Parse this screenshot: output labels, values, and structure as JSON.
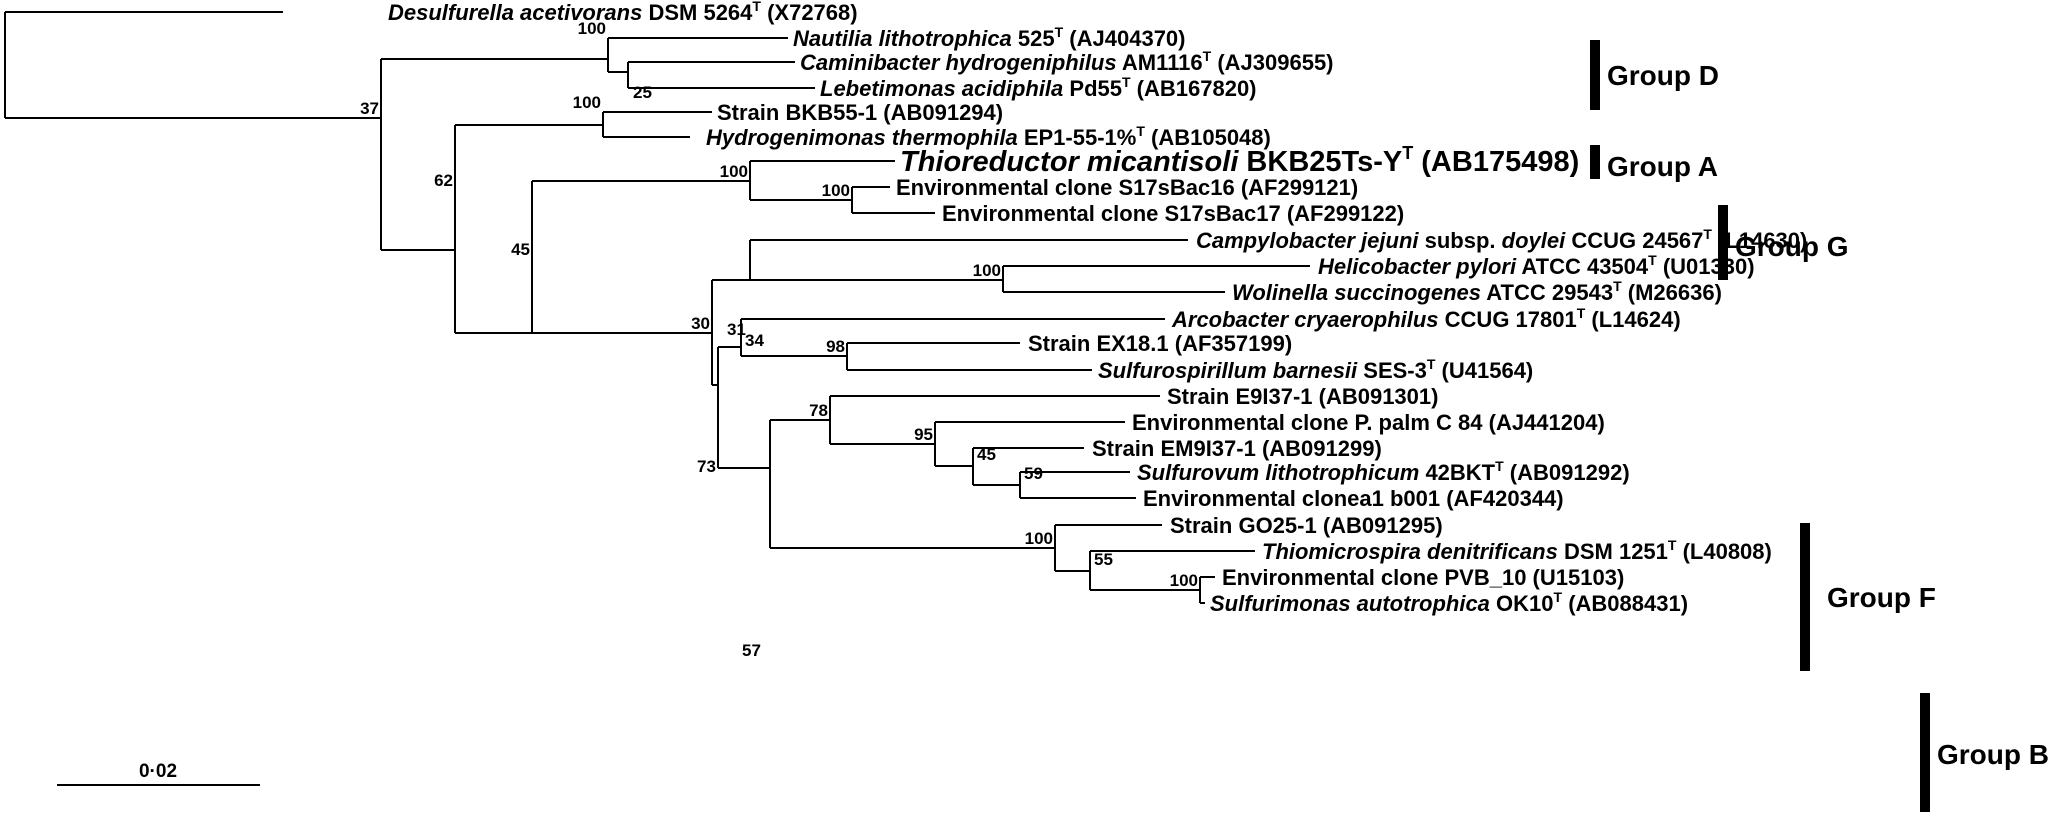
{
  "leaves": {
    "desulfurella": {
      "name": "Desulfurella acetivorans",
      "strain": " DSM 5264",
      "sup": "T",
      "acc": " (X72768)"
    },
    "nautilia": {
      "name": "Nautilia lithotrophica",
      "strain": " 525",
      "sup": "T",
      "acc": " (AJ404370)"
    },
    "caminibacter": {
      "name": "Caminibacter hydrogeniphilus",
      "strain": " AM1116",
      "sup": "T",
      "acc": " (AJ309655)"
    },
    "lebetimonas": {
      "name": "Lebetimonas acidiphila",
      "strain": " Pd55",
      "sup": "T",
      "acc": " (AB167820)"
    },
    "bkb55": {
      "name": "",
      "strain": "Strain BKB55-1",
      "sup": "",
      "acc": " (AB091294)"
    },
    "hydrogenimonas": {
      "name": "Hydrogenimonas thermophila",
      "strain": " EP1-55-1%",
      "sup": "T",
      "acc": " (AB105048)"
    },
    "thioreductor": {
      "name": "Thioreductor micantisoli",
      "strain": " BKB25Ts-Y",
      "sup": "T",
      "acc": " (AB175498)"
    },
    "s17sbac16": {
      "name": "",
      "strain": "Environmental clone S17sBac16",
      "sup": "",
      "acc": " (AF299121)"
    },
    "s17sbac17": {
      "name": "",
      "strain": "Environmental clone S17sBac17",
      "sup": "",
      "acc": " (AF299122)"
    },
    "campylobacter": {
      "name": "Campylobacter jejuni",
      "strain": " subsp. ",
      "name2": "doylei",
      "strain2": " CCUG 24567",
      "sup": "T",
      "acc": " (L14630)"
    },
    "helicobacter": {
      "name": "Helicobacter pylori",
      "strain": " ATCC 43504",
      "sup": "T",
      "acc": " (U01330)"
    },
    "wolinella": {
      "name": "Wolinella succinogenes",
      "strain": " ATCC 29543",
      "sup": "T",
      "acc": " (M26636)"
    },
    "arcobacter": {
      "name": "Arcobacter cryaerophilus",
      "strain": " CCUG 17801",
      "sup": "T",
      "acc": " (L14624)"
    },
    "ex18": {
      "name": "",
      "strain": "Strain EX18.1",
      "sup": "",
      "acc": " (AF357199)"
    },
    "sulfurospirillum": {
      "name": "Sulfurospirillum barnesii",
      "strain": " SES-3",
      "sup": "T",
      "acc": " (U41564)"
    },
    "e9i37": {
      "name": "",
      "strain": "Strain E9I37-1",
      "sup": "",
      "acc": " (AB091301)"
    },
    "ppalm": {
      "name": "",
      "strain": "Environmental clone P. palm C 84",
      "sup": "",
      "acc": " (AJ441204)"
    },
    "em9i37": {
      "name": "",
      "strain": "Strain EM9I37-1",
      "sup": "",
      "acc": " (AB091299)"
    },
    "sulfurovum": {
      "name": "Sulfurovum lithotrophicum",
      "strain": " 42BKT",
      "sup": "T",
      "acc": " (AB091292)"
    },
    "clonea1": {
      "name": "",
      "strain": "Environmental clonea1 b001",
      "sup": "",
      "acc": " (AF420344)"
    },
    "go25": {
      "name": "",
      "strain": "Strain GO25-1",
      "sup": "",
      "acc": " (AB091295)"
    },
    "thiomicrospira": {
      "name": "Thiomicrospira denitrificans",
      "strain": " DSM 1251",
      "sup": "T",
      "acc": " (L40808)"
    },
    "pvb10": {
      "name": "",
      "strain": "Environmental clone PVB_10",
      "sup": "",
      "acc": " (U15103)"
    },
    "sulfurimonas": {
      "name": "Sulfurimonas autotrophica",
      "strain": " OK10",
      "sup": "T",
      "acc": " (AB088431)"
    }
  },
  "bootstrap": {
    "b100_groupd": "100",
    "b25": "25",
    "b37": "37",
    "b100_groupa": "100",
    "b62": "62",
    "b100_groupg": "100",
    "b100_s17": "100",
    "b45": "45",
    "b31": "31",
    "b100_helico": "100",
    "b30": "30",
    "b34": "34",
    "b98": "98",
    "b73": "73",
    "b78": "78",
    "b95": "95",
    "b45b": "45",
    "b59": "59",
    "b57": "57",
    "b100_groupb": "100",
    "b55": "55",
    "b100_pvb": "100"
  },
  "groups": {
    "d": "Group D",
    "a": "Group A",
    "g": "Group G",
    "f": "Group F",
    "b": "Group B"
  },
  "scale": {
    "label": "0·02"
  }
}
